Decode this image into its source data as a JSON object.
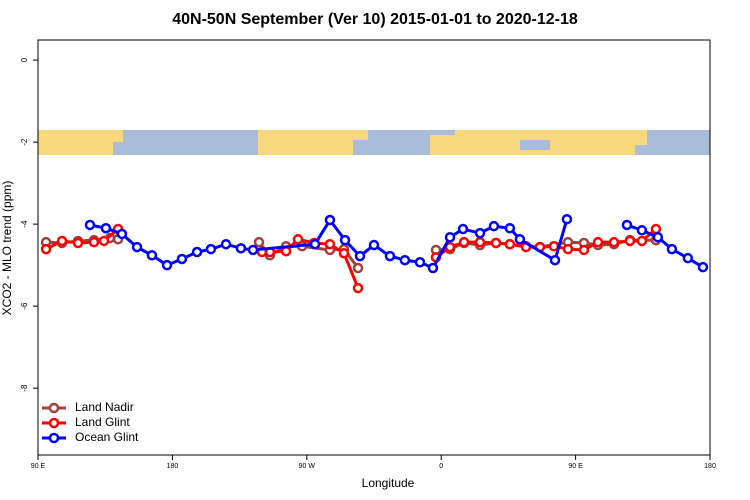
{
  "chart_data": {
    "type": "line",
    "title": "40N-50N September (Ver 10)   2015-01-01 to 2020-12-18",
    "x_label": "Longitude",
    "y_label": "XCO2 - MLO trend (ppm)",
    "xlim": [
      90,
      540
    ],
    "ylim": [
      0.49,
      -9.63
    ],
    "xticks": [
      {
        "value": 90,
        "label": "90 E"
      },
      180,
      {
        "value": 270,
        "label": "90 W"
      },
      {
        "value": 360,
        "label": "0"
      },
      {
        "value": 450,
        "label": "90 E"
      },
      {
        "value": 540,
        "label": "180"
      }
    ],
    "yticks": [
      0,
      -2,
      -4,
      -6,
      -8
    ],
    "legend": "bottom-left",
    "series": [
      {
        "name": "Land Nadir",
        "color": "#a0403f",
        "x": [
          95.4,
          106.1,
          116.8,
          127.5,
          138.2,
          143.6,
          null,
          238.0,
          245.3,
          256.1,
          266.8,
          285.5,
          294.9,
          304.3,
          null,
          356.5,
          365.9,
          375.3,
          386.0,
          396.7,
          406.0,
          416.8,
          426.1,
          444.9,
          455.6,
          465.0,
          475.7,
          486.4,
          503.8
        ],
        "values": [
          -4.44,
          -4.46,
          -4.41,
          -4.39,
          -4.34,
          -4.37,
          null,
          -4.44,
          -4.76,
          -4.54,
          -4.54,
          -4.63,
          -4.61,
          -5.07,
          null,
          -4.63,
          -4.61,
          -4.46,
          -4.51,
          -4.46,
          -4.49,
          -4.54,
          -4.56,
          -4.44,
          -4.46,
          -4.51,
          -4.49,
          -4.39,
          -4.39
        ]
      },
      {
        "name": "Land Glint",
        "color": "#ff0000",
        "x": [
          95.4,
          106.1,
          116.8,
          127.5,
          134.2,
          143.6,
          null,
          240.0,
          245.3,
          256.1,
          264.1,
          274.8,
          285.5,
          294.9,
          304.3,
          null,
          356.5,
          365.9,
          375.3,
          386.0,
          396.7,
          406.0,
          416.8,
          426.1,
          435.5,
          444.9,
          455.6,
          465.0,
          475.7,
          486.4,
          494.4,
          503.8
        ],
        "values": [
          -4.61,
          -4.41,
          -4.46,
          -4.44,
          -4.41,
          -4.12,
          null,
          -4.68,
          -4.68,
          -4.66,
          -4.37,
          -4.46,
          -4.49,
          -4.71,
          -5.56,
          null,
          -4.81,
          -4.56,
          -4.44,
          -4.44,
          -4.46,
          -4.49,
          -4.56,
          -4.56,
          -4.54,
          -4.61,
          -4.63,
          -4.44,
          -4.44,
          -4.41,
          -4.41,
          -4.12
        ]
      },
      {
        "name": "Ocean Glint",
        "color": "#0000ff",
        "x": [
          124.8,
          135.5,
          146.2,
          156.3,
          166.3,
          176.4,
          186.4,
          196.5,
          205.8,
          215.9,
          225.9,
          234.0,
          275.5,
          285.5,
          295.6,
          305.6,
          315.0,
          325.7,
          335.7,
          345.8,
          354.5,
          365.9,
          374.6,
          386.0,
          395.3,
          406.0,
          412.7,
          436.2,
          444.2,
          null,
          484.4,
          494.4,
          505.1,
          514.5,
          525.2,
          535.3
        ],
        "values": [
          -4.02,
          -4.1,
          -4.24,
          -4.56,
          -4.76,
          -5.0,
          -4.85,
          -4.68,
          -4.61,
          -4.49,
          -4.59,
          -4.63,
          -4.49,
          -3.9,
          -4.39,
          -4.78,
          -4.51,
          -4.78,
          -4.88,
          -4.93,
          -5.07,
          -4.32,
          -4.12,
          -4.22,
          -4.05,
          -4.1,
          -4.37,
          -4.88,
          -3.88,
          null,
          -4.02,
          -4.15,
          -4.32,
          -4.61,
          -4.83,
          -5.05
        ]
      }
    ]
  }
}
